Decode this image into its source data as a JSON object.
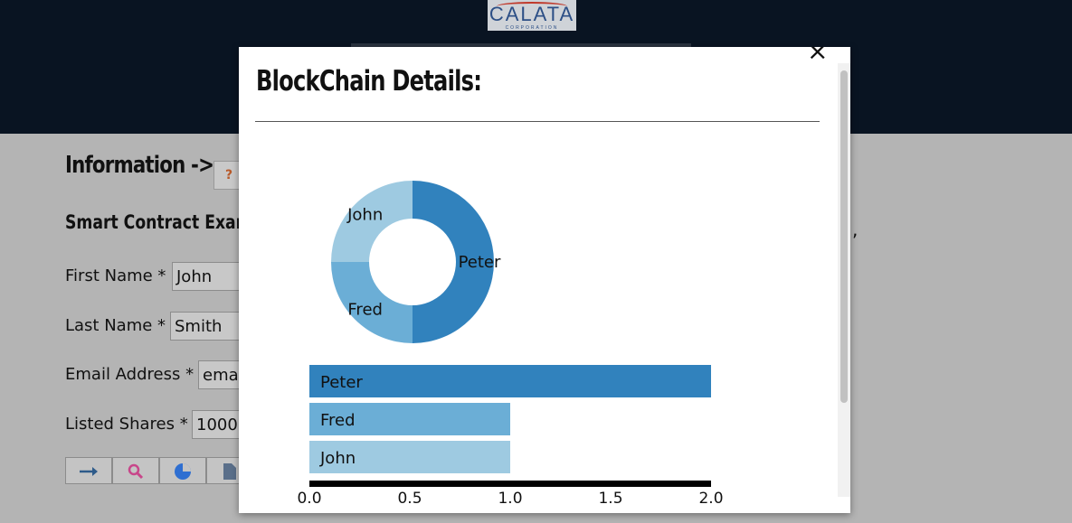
{
  "header": {
    "logo_text": "CALATA",
    "logo_sub": "CORPORATION"
  },
  "page": {
    "title": "Information ->",
    "help_icon": "?",
    "subtitle": "Smart Contract Exam",
    "trailing_comma": ",",
    "fields": [
      {
        "label": "First Name *",
        "value": "John"
      },
      {
        "label": "Last Name *",
        "value": "Smith"
      },
      {
        "label": "Email Address *",
        "value": "ema"
      },
      {
        "label": "Listed Shares *",
        "value": "1000"
      }
    ],
    "toolbar_icons": [
      "arrow-right-icon",
      "search-icon",
      "pie-chart-icon",
      "document-icon"
    ]
  },
  "modal": {
    "title": "BlockChain Details:",
    "close_label": "×"
  },
  "colors": {
    "peter": "#3182bd",
    "fred": "#6baed6",
    "john": "#9ecae1",
    "header": "#091422"
  },
  "chart_data": [
    {
      "type": "pie",
      "categories": [
        "Peter",
        "Fred",
        "John"
      ],
      "values": [
        2,
        1,
        1
      ]
    },
    {
      "type": "bar",
      "categories": [
        "Peter",
        "Fred",
        "John"
      ],
      "values": [
        2.0,
        1.0,
        1.0
      ],
      "xlim": [
        0,
        2
      ],
      "xticks": [
        "0.0",
        "0.5",
        "1.0",
        "1.5",
        "2.0"
      ]
    }
  ]
}
